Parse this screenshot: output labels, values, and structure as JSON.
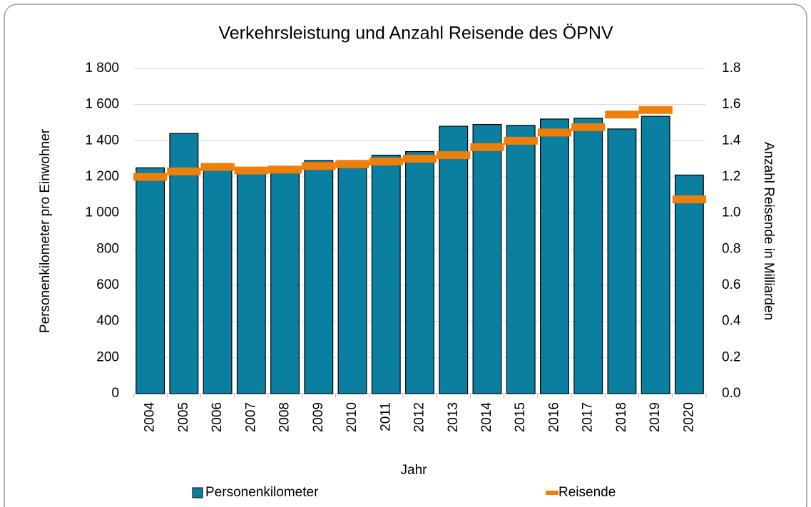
{
  "chart_data": {
    "type": "bar",
    "title": "Verkehrsleistung und Anzahl Reisende des ÖPNV",
    "x_label": "Jahr",
    "y_label": "Personenkilometer pro Einwohner",
    "y2_label": "Anzahl Reisende in Milliarden",
    "categories": [
      "2004",
      "2005",
      "2006",
      "2007",
      "2008",
      "2009",
      "2010",
      "2011",
      "2012",
      "2013",
      "2014",
      "2015",
      "2016",
      "2017",
      "2018",
      "2019",
      "2020"
    ],
    "series": [
      {
        "name": "Personenkilometer",
        "type": "bar",
        "color": "#0a7fa0",
        "values": [
          1250,
          1440,
          1255,
          1230,
          1235,
          1290,
          1290,
          1320,
          1340,
          1480,
          1490,
          1485,
          1520,
          1525,
          1465,
          1535,
          1210
        ]
      },
      {
        "name": "Reisende",
        "type": "dash",
        "axis": "y2",
        "color": "#f07f09",
        "values": [
          1.2,
          1.23,
          1.255,
          1.235,
          1.24,
          1.26,
          1.27,
          1.285,
          1.3,
          1.32,
          1.365,
          1.4,
          1.445,
          1.475,
          1.545,
          1.57,
          1.075
        ]
      }
    ],
    "ylim": [
      0,
      1800
    ],
    "yticks": [
      0,
      200,
      400,
      600,
      800,
      {
        "value": 1000,
        "label": "1 000"
      },
      {
        "value": 1200,
        "label": "1 200"
      },
      {
        "value": 1400,
        "label": "1 400"
      },
      {
        "value": 1600,
        "label": "1 600"
      },
      {
        "value": 1800,
        "label": "1 800"
      }
    ],
    "y2lim": [
      0,
      1.8
    ],
    "y2ticks": [
      {
        "value": 0,
        "label": "0.0"
      },
      0.2,
      0.4,
      0.6,
      0.8,
      {
        "value": 1,
        "label": "1.0"
      },
      1.2,
      1.4,
      1.6,
      1.8
    ],
    "grid": true,
    "legend": "bottom"
  }
}
